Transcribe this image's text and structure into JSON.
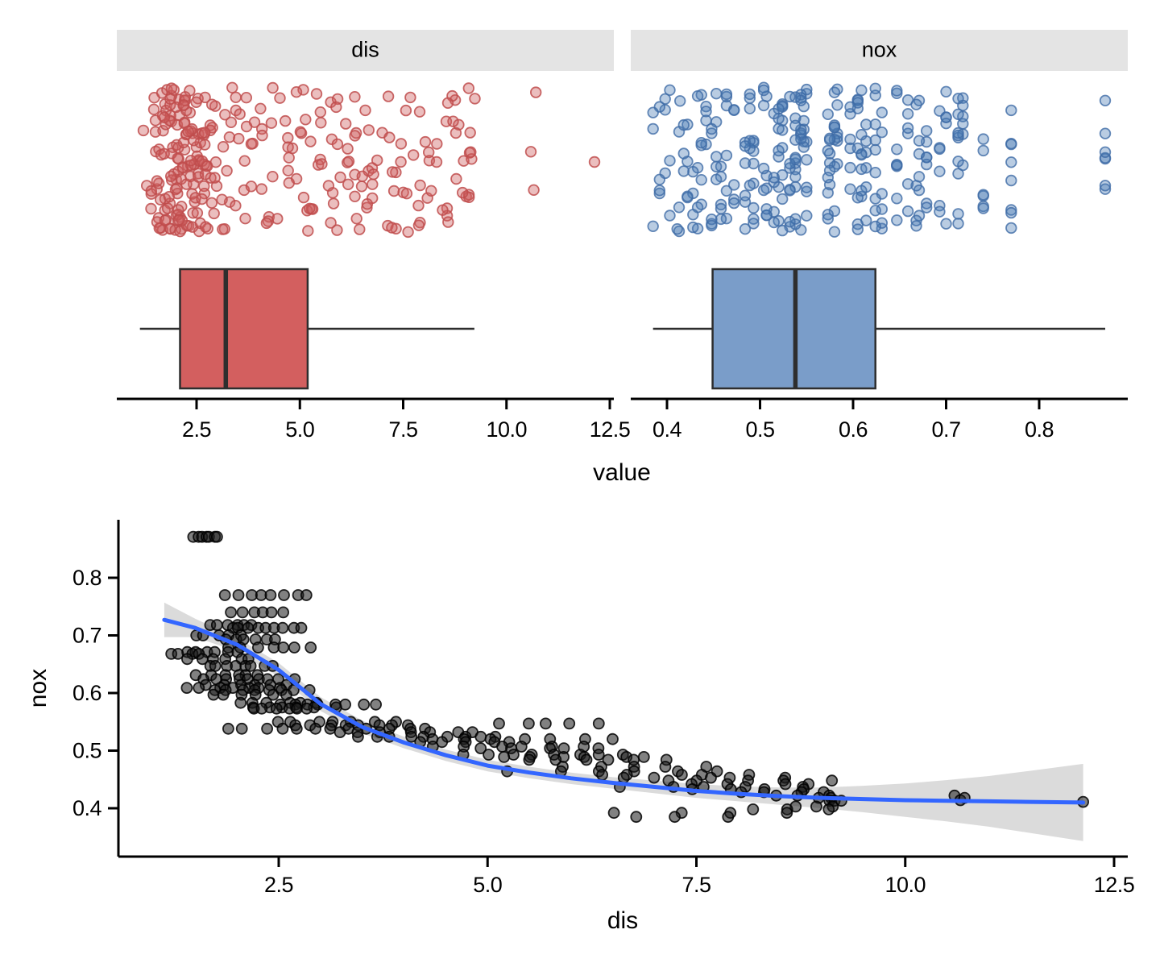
{
  "figure": {
    "background": "#FFFFFF",
    "text_color": "#000000",
    "strip_bg": "#E4E4E4",
    "axis_color": "#000000",
    "box_stroke": "#2E2E2E"
  },
  "chart_data": [
    {
      "type": "raincloud_facets",
      "description": "jittered strip plot over horizontal boxplot, faceted by variable",
      "axis_title": "value",
      "legend": "none",
      "facets": [
        {
          "label": "dis",
          "tick_values": [
            2.5,
            5.0,
            7.5,
            10.0,
            12.5
          ],
          "tick_labels": [
            "2.5",
            "5.0",
            "7.5",
            "10.0",
            "12.5"
          ],
          "x_range": [
            0.56,
            12.66
          ],
          "boxplot": {
            "whisker_low": 1.1296,
            "q1": 2.1002,
            "median": 3.2074,
            "q3": 5.1884,
            "whisker_high": 9.2229
          },
          "box_fill": "#D35F5F",
          "point_fill": "rgba(205,92,92,0.40)",
          "point_stroke": "rgba(192,76,76,0.85)",
          "source": "dis"
        },
        {
          "label": "nox",
          "tick_values": [
            0.4,
            0.5,
            0.6,
            0.7,
            0.8
          ],
          "tick_labels": [
            "0.4",
            "0.5",
            "0.6",
            "0.7",
            "0.8"
          ],
          "x_range": [
            0.361,
            0.895
          ],
          "boxplot": {
            "whisker_low": 0.385,
            "q1": 0.449,
            "median": 0.538,
            "q3": 0.624,
            "whisker_high": 0.871
          },
          "box_fill": "#7A9DC9",
          "point_fill": "rgba(70,120,180,0.38)",
          "point_stroke": "rgba(62,108,166,0.80)",
          "source": "nox"
        }
      ]
    },
    {
      "type": "scatter",
      "x_label": "dis",
      "y_label": "nox",
      "x_ticks": {
        "values": [
          2.5,
          5.0,
          7.5,
          10.0,
          12.5
        ],
        "labels": [
          "2.5",
          "5.0",
          "7.5",
          "10.0",
          "12.5"
        ]
      },
      "y_ticks": {
        "values": [
          0.4,
          0.5,
          0.6,
          0.7,
          0.8
        ],
        "labels": [
          "0.4",
          "0.5",
          "0.6",
          "0.7",
          "0.8"
        ]
      },
      "x_range": [
        0.58,
        12.66
      ],
      "y_range": [
        0.316,
        0.901
      ],
      "grid": "off",
      "point_fill": "rgba(25,25,25,0.55)",
      "point_stroke": "rgba(0,0,0,0.85)",
      "groups_format": [
        "nox",
        "dis_min",
        "dis_max",
        "count"
      ],
      "groups": [
        [
          0.871,
          1.46,
          1.8,
          7
        ],
        [
          0.77,
          1.82,
          2.92,
          8
        ],
        [
          0.74,
          1.89,
          2.61,
          6
        ],
        [
          0.718,
          1.61,
          2.24,
          6
        ],
        [
          0.713,
          1.87,
          2.83,
          9
        ],
        [
          0.7,
          1.41,
          2.11,
          5
        ],
        [
          0.693,
          1.79,
          2.52,
          6
        ],
        [
          0.679,
          1.85,
          2.94,
          7
        ],
        [
          0.671,
          1.32,
          2.06,
          6
        ],
        [
          0.668,
          1.13,
          1.64,
          4
        ],
        [
          0.659,
          1.35,
          2.25,
          6
        ],
        [
          0.647,
          1.61,
          2.46,
          8
        ],
        [
          0.631,
          1.46,
          2.36,
          6
        ],
        [
          0.624,
          1.54,
          2.73,
          9
        ],
        [
          0.614,
          1.55,
          2.64,
          6
        ],
        [
          0.609,
          1.33,
          2.55,
          7
        ],
        [
          0.605,
          1.67,
          2.95,
          8
        ],
        [
          0.597,
          1.61,
          2.66,
          6
        ],
        [
          0.583,
          1.94,
          3.04,
          6
        ],
        [
          0.58,
          2.42,
          3.72,
          8
        ],
        [
          0.575,
          2.04,
          3.24,
          6
        ],
        [
          0.573,
          2.12,
          2.94,
          6
        ],
        [
          0.55,
          2.35,
          3.95,
          7
        ],
        [
          0.547,
          4.91,
          6.54,
          5
        ],
        [
          0.544,
          2.64,
          4.15,
          8
        ],
        [
          0.538,
          1.79,
          4.35,
          12
        ],
        [
          0.532,
          3.03,
          5.01,
          7
        ],
        [
          0.524,
          3.35,
          5.23,
          9
        ],
        [
          0.52,
          4.2,
          6.6,
          7
        ],
        [
          0.515,
          4.03,
          5.44,
          5
        ],
        [
          0.507,
          4.23,
          6.27,
          6
        ],
        [
          0.504,
          4.63,
          6.63,
          5
        ],
        [
          0.493,
          4.54,
          6.82,
          8
        ],
        [
          0.489,
          5.02,
          7.13,
          6
        ],
        [
          0.484,
          5.31,
          7.32,
          6
        ],
        [
          0.472,
          5.64,
          7.83,
          5
        ],
        [
          0.464,
          5.12,
          8.1,
          6
        ],
        [
          0.458,
          6.12,
          8.34,
          5
        ],
        [
          0.453,
          6.43,
          8.72,
          5
        ],
        [
          0.448,
          6.84,
          9.22,
          5
        ],
        [
          0.442,
          7.24,
          9.19,
          4
        ],
        [
          0.437,
          6.41,
          8.91,
          5
        ],
        [
          0.433,
          7.04,
          9.22,
          4
        ],
        [
          0.428,
          7.83,
          9.2,
          4
        ],
        [
          0.422,
          8.33,
          9.16,
          3
        ],
        [
          0.418,
          8.91,
          9.22,
          2
        ],
        [
          0.413,
          9.05,
          9.25,
          3
        ],
        [
          0.403,
          8.54,
          9.22,
          3
        ],
        [
          0.398,
          8.01,
          9.22,
          3
        ],
        [
          0.392,
          6.21,
          8.79,
          4
        ],
        [
          0.385,
          6.62,
          8.11,
          3
        ]
      ],
      "extra_points": [
        [
          10.59,
          0.422
        ],
        [
          10.66,
          0.414
        ],
        [
          10.71,
          0.418
        ],
        [
          12.13,
          0.411
        ]
      ],
      "smooth": {
        "color": "#3366FF",
        "ribbon_fill": "rgba(0,0,0,0.14)",
        "line_format": [
          "dis",
          "nox",
          "se"
        ],
        "line": [
          [
            1.13,
            0.727,
            0.03
          ],
          [
            1.5,
            0.713,
            0.016
          ],
          [
            2.0,
            0.684,
            0.012
          ],
          [
            2.5,
            0.64,
            0.012
          ],
          [
            3.0,
            0.581,
            0.012
          ],
          [
            3.5,
            0.541,
            0.011
          ],
          [
            4.0,
            0.514,
            0.01
          ],
          [
            4.5,
            0.492,
            0.01
          ],
          [
            5.0,
            0.474,
            0.01
          ],
          [
            5.5,
            0.462,
            0.01
          ],
          [
            6.0,
            0.452,
            0.01
          ],
          [
            6.5,
            0.444,
            0.01
          ],
          [
            7.0,
            0.437,
            0.011
          ],
          [
            7.5,
            0.43,
            0.012
          ],
          [
            8.0,
            0.425,
            0.013
          ],
          [
            8.5,
            0.421,
            0.015
          ],
          [
            9.0,
            0.418,
            0.018
          ],
          [
            9.5,
            0.416,
            0.023
          ],
          [
            10.0,
            0.414,
            0.029
          ],
          [
            10.5,
            0.413,
            0.036
          ],
          [
            11.0,
            0.412,
            0.044
          ],
          [
            11.5,
            0.411,
            0.054
          ],
          [
            12.13,
            0.41,
            0.067
          ]
        ]
      }
    }
  ]
}
